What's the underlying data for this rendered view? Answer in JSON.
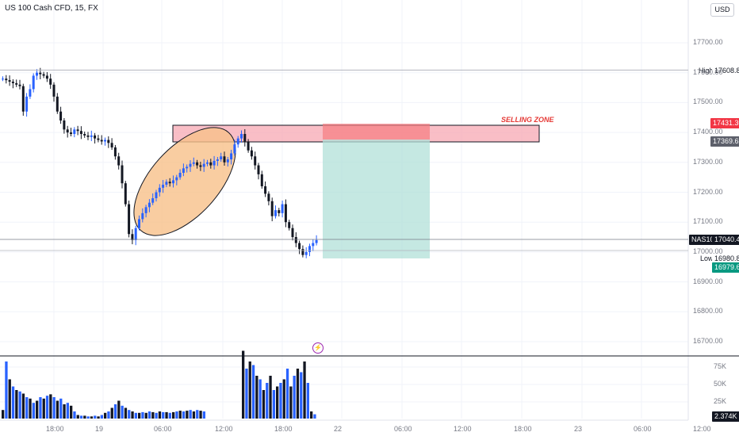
{
  "header": {
    "symbol_title": "US 100 Cash CFD, 15, FX",
    "currency_button": "USD"
  },
  "chart_data": {
    "type": "candlestick",
    "y_axis": {
      "ticks": [
        "17700.00",
        "17600.00",
        "17500.00",
        "17400.00",
        "17300.00",
        "17200.00",
        "17100.00",
        "17000.00",
        "16900.00",
        "16800.00",
        "16700.00"
      ]
    },
    "x_axis": {
      "ticks": [
        "18:00",
        "19",
        "06:00",
        "12:00",
        "18:00",
        "22",
        "06:00",
        "12:00",
        "18:00",
        "23",
        "06:00",
        "12:00"
      ]
    },
    "volume_axis": {
      "ticks": [
        "75K",
        "50K",
        "25K"
      ]
    },
    "price_labels": {
      "high": {
        "label": "High",
        "value": "17608.83"
      },
      "low": {
        "label": "Low",
        "value": "16980.89"
      },
      "symbol": {
        "label": "NAS100",
        "value": "17040.44"
      },
      "zone_top": "17431.30",
      "zone_bottom": "17369.62",
      "target": "16979.63",
      "volume_current": "2.374K"
    },
    "annotations": {
      "zone_label": "SELLING ZONE"
    },
    "colors": {
      "up": "#2962ff",
      "down": "#131722",
      "zone_fill": "#f7a8b3",
      "target_fill": "#b2e0d8",
      "ellipse_fill": "#f8c18a"
    }
  }
}
